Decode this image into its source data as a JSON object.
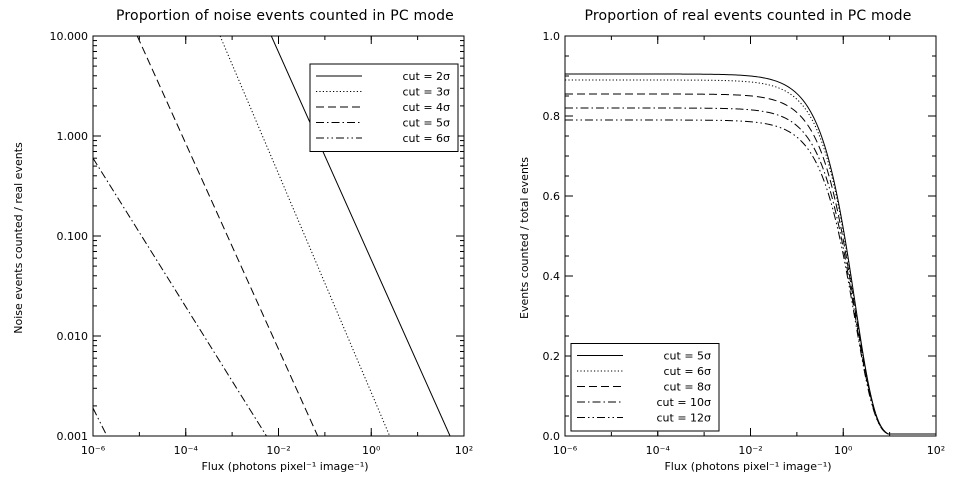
{
  "chart_data": [
    {
      "type": "line",
      "title": "Proportion of noise events counted in PC mode",
      "ylabel": "Noise events counted / real events",
      "xlabel": "Flux (photons pixel⁻¹ image⁻¹)",
      "xscale": "log",
      "yscale": "log",
      "xlim": [
        1e-06,
        100
      ],
      "ylim": [
        0.001,
        10
      ],
      "xticks": [
        1e-06,
        0.0001,
        0.01,
        1,
        100
      ],
      "xtick_labels": [
        "10⁻⁶",
        "10⁻⁴",
        "10⁻²",
        "10⁰",
        "10²"
      ],
      "yticks": [
        0.001,
        0.01,
        0.1,
        1,
        10
      ],
      "ytick_labels": [
        "0.001",
        "0.010",
        "0.100",
        "1.000",
        "10.000"
      ],
      "legend_position": "top-right",
      "series": [
        {
          "name": "cut = 2σ",
          "linestyle": "solid",
          "x": [
            0.007,
            50
          ],
          "y": [
            10,
            0.001
          ]
        },
        {
          "name": "cut = 3σ",
          "linestyle": "dotted",
          "x": [
            0.00055,
            2.5
          ],
          "y": [
            10,
            0.001
          ]
        },
        {
          "name": "cut = 4σ",
          "linestyle": "dashed",
          "x": [
            9e-06,
            0.07
          ],
          "y": [
            10,
            0.001
          ]
        },
        {
          "name": "cut = 5σ",
          "linestyle": "dash-dot",
          "x": [
            1e-06,
            0.0055
          ],
          "y": [
            0.6,
            0.001
          ]
        },
        {
          "name": "cut = 6σ",
          "linestyle": "dash-dot-dot",
          "x": [
            1e-06,
            2e-06
          ],
          "y": [
            0.0019,
            0.001
          ]
        }
      ]
    },
    {
      "type": "line",
      "title": "Proportion of real events counted in PC mode",
      "ylabel": "Events counted / total events",
      "xlabel": "Flux (photons pixel⁻¹ image⁻¹)",
      "xscale": "log",
      "yscale": "linear",
      "xlim": [
        1e-06,
        100
      ],
      "ylim": [
        0,
        1
      ],
      "xticks": [
        1e-06,
        0.0001,
        0.01,
        1,
        100
      ],
      "xtick_labels": [
        "10⁻⁶",
        "10⁻⁴",
        "10⁻²",
        "10⁰",
        "10²"
      ],
      "yticks": [
        0,
        0.2,
        0.4,
        0.6,
        0.8,
        1.0
      ],
      "ytick_labels": [
        "0.0",
        "0.2",
        "0.4",
        "0.6",
        "0.8",
        "1.0"
      ],
      "legend_position": "bottom-left",
      "series": [
        {
          "name": "cut = 5σ",
          "linestyle": "solid",
          "plateau": 0.905
        },
        {
          "name": "cut = 6σ",
          "linestyle": "dotted",
          "plateau": 0.89
        },
        {
          "name": "cut = 8σ",
          "linestyle": "dashed",
          "plateau": 0.855
        },
        {
          "name": "cut = 10σ",
          "linestyle": "dash-dot",
          "plateau": 0.82
        },
        {
          "name": "cut = 12σ",
          "linestyle": "dash-dot-dot",
          "plateau": 0.79
        }
      ]
    }
  ]
}
